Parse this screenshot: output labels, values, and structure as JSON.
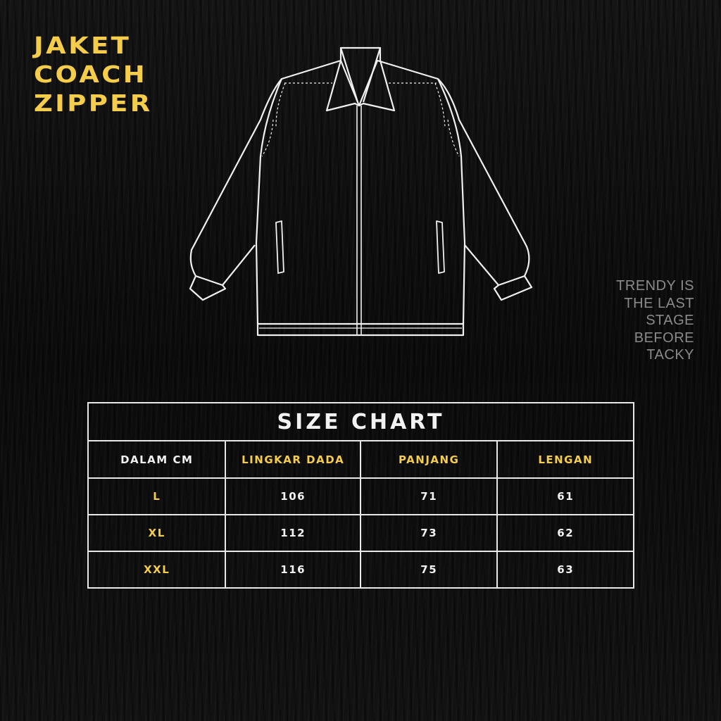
{
  "title_lines": [
    "JAKET",
    "COACH",
    "ZIPPER"
  ],
  "quote_lines": [
    "TRENDY IS",
    "THE LAST",
    "STAGE",
    "BEFORE",
    "TACKY"
  ],
  "size_chart": {
    "title": "SIZE CHART",
    "headers": [
      "DALAM CM",
      "LINGKAR DADA",
      "PANJANG",
      "LENGAN"
    ],
    "rows": [
      {
        "size": "L",
        "lingkar_dada": "106",
        "panjang": "71",
        "lengan": "61"
      },
      {
        "size": "XL",
        "lingkar_dada": "112",
        "panjang": "73",
        "lengan": "62"
      },
      {
        "size": "XXL",
        "lingkar_dada": "116",
        "panjang": "75",
        "lengan": "63"
      }
    ]
  },
  "colors": {
    "accent": "#f6cd4a",
    "text": "#f2f2f2",
    "background": "#0c0c0c",
    "quote": "#8a8a8a"
  }
}
